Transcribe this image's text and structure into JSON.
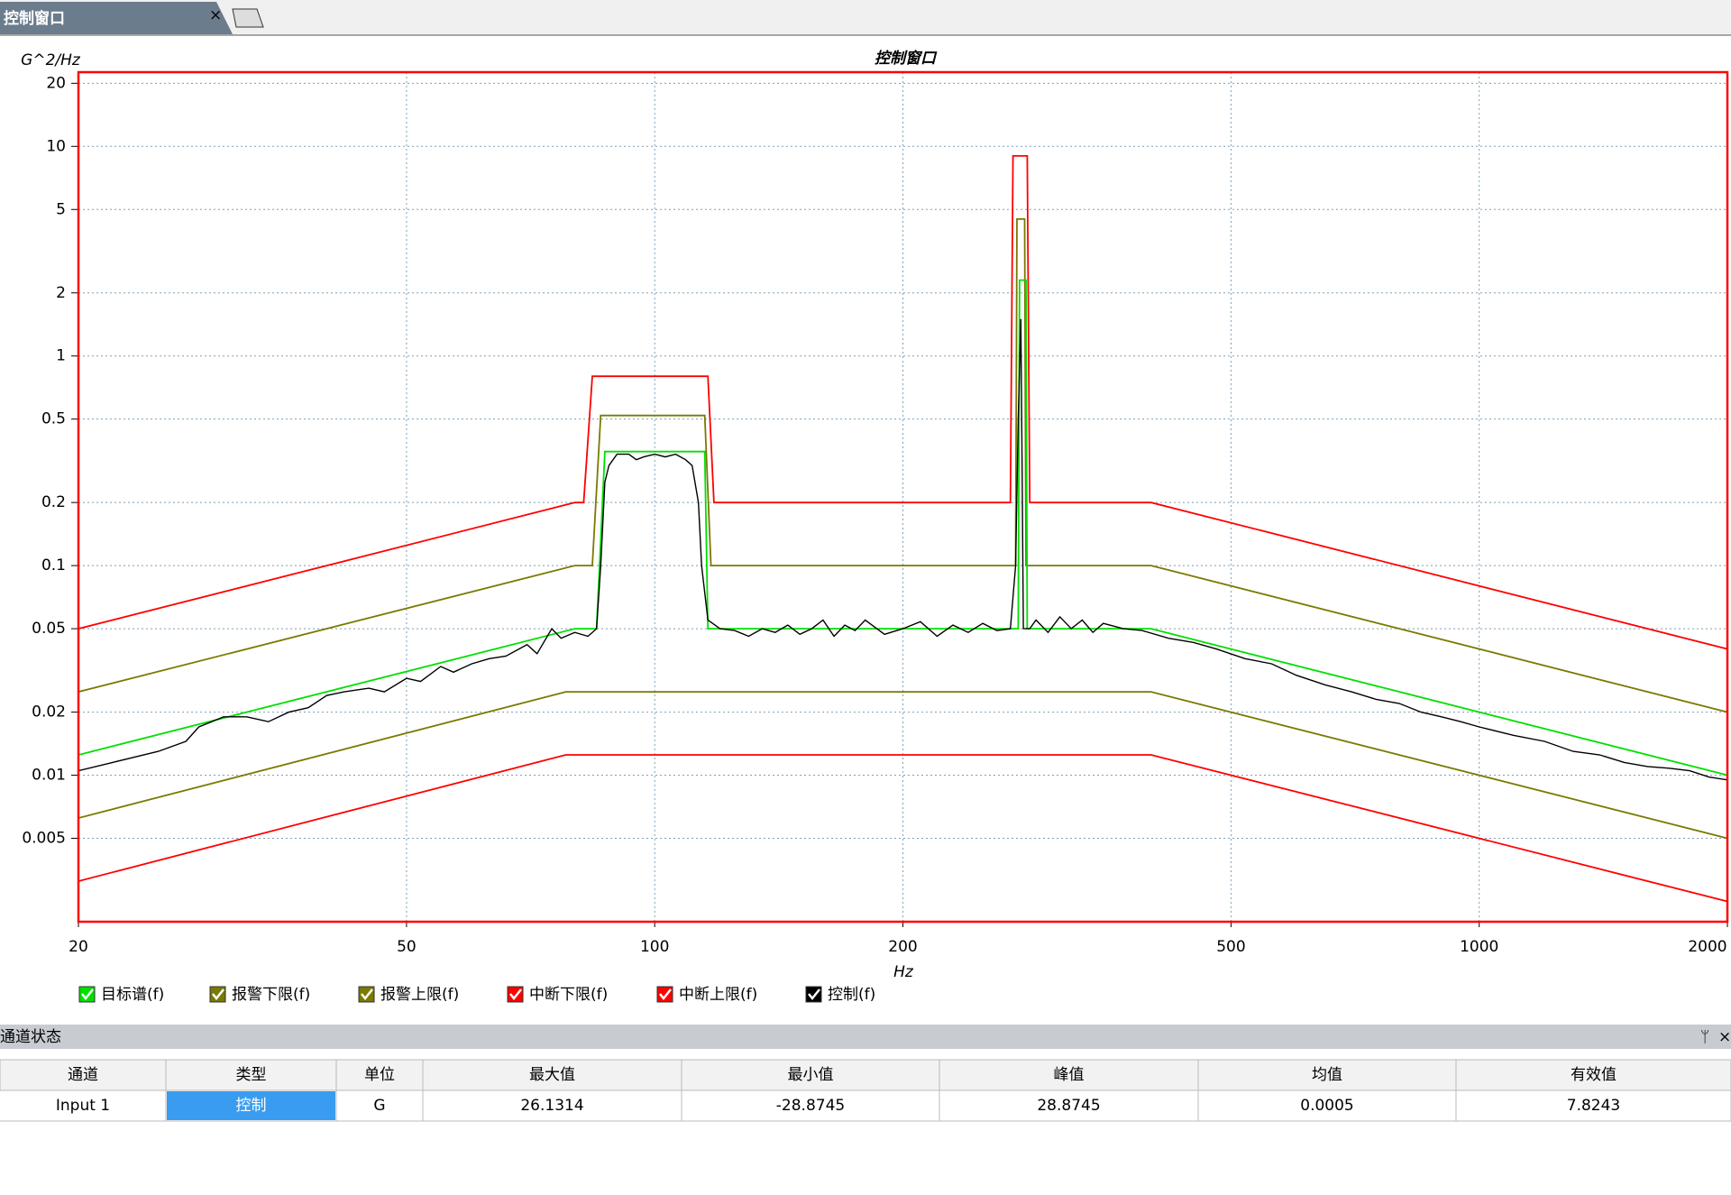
{
  "tab": {
    "title": "控制窗口"
  },
  "chart_data": {
    "type": "line",
    "title": "控制窗口",
    "y_label": "G^2/Hz",
    "x_label": "Hz",
    "xscale": "log",
    "yscale": "log",
    "grid": true,
    "xlim": [
      20,
      2000
    ],
    "ylim": [
      0.002,
      22.6
    ],
    "xticks": [
      20,
      50,
      100,
      200,
      500,
      1000,
      2000
    ],
    "yticks": [
      20,
      10,
      5,
      2,
      1,
      0.5,
      0.2,
      0.1,
      0.05,
      0.02,
      0.01,
      0.005
    ],
    "series": [
      {
        "name": "目标谱(f)",
        "color": "#00e000",
        "x": [
          20,
          80,
          85,
          87,
          115,
          116,
          276,
          277,
          282,
          283,
          400,
          2000
        ],
        "values": [
          0.0125,
          0.05,
          0.05,
          0.35,
          0.35,
          0.05,
          0.05,
          2.3,
          2.3,
          0.05,
          0.05,
          0.01
        ]
      },
      {
        "name": "报警下限(f)",
        "color": "#7a7a00",
        "x": [
          20,
          78,
          400,
          2000
        ],
        "values": [
          0.00625,
          0.025,
          0.025,
          0.005
        ]
      },
      {
        "name": "报警上限(f)",
        "color": "#7a7a00",
        "x": [
          20,
          80,
          84,
          86,
          115,
          117,
          274,
          275,
          281,
          282,
          400,
          2000
        ],
        "values": [
          0.025,
          0.1,
          0.1,
          0.52,
          0.52,
          0.1,
          0.1,
          4.5,
          4.5,
          0.1,
          0.1,
          0.02
        ]
      },
      {
        "name": "中断下限(f)",
        "color": "#ff0000",
        "x": [
          20,
          78,
          400,
          2000
        ],
        "values": [
          0.003125,
          0.0125,
          0.0125,
          0.0025
        ]
      },
      {
        "name": "中断上限(f)",
        "color": "#ff0000",
        "x": [
          20,
          80,
          82,
          84,
          116,
          118,
          270,
          272,
          283,
          285,
          400,
          2000
        ],
        "values": [
          0.05,
          0.2,
          0.2,
          0.8,
          0.8,
          0.2,
          0.2,
          9,
          9,
          0.2,
          0.2,
          0.04
        ]
      },
      {
        "name": "控制(f)",
        "color": "#000000",
        "x": [
          20,
          22,
          25,
          27,
          28,
          30,
          32,
          34,
          36,
          38,
          40,
          42,
          45,
          47,
          50,
          52,
          55,
          57,
          60,
          63,
          66,
          70,
          72,
          75,
          77,
          80,
          83,
          85,
          86,
          87,
          88,
          90,
          93,
          95,
          97,
          100,
          103,
          106,
          109,
          111,
          113,
          114,
          116,
          120,
          125,
          130,
          135,
          140,
          145,
          150,
          155,
          160,
          165,
          170,
          175,
          180,
          190,
          200,
          210,
          220,
          230,
          240,
          250,
          260,
          270,
          274,
          276,
          278,
          279,
          280,
          285,
          290,
          300,
          310,
          320,
          330,
          340,
          350,
          370,
          390,
          420,
          450,
          480,
          520,
          560,
          600,
          650,
          700,
          750,
          800,
          850,
          900,
          950,
          1000,
          1100,
          1200,
          1300,
          1400,
          1500,
          1600,
          1700,
          1800,
          1900,
          2000
        ],
        "values": [
          0.0105,
          0.0115,
          0.013,
          0.0145,
          0.017,
          0.019,
          0.019,
          0.018,
          0.02,
          0.021,
          0.024,
          0.025,
          0.026,
          0.025,
          0.029,
          0.028,
          0.033,
          0.031,
          0.034,
          0.036,
          0.037,
          0.042,
          0.038,
          0.05,
          0.045,
          0.048,
          0.046,
          0.05,
          0.1,
          0.25,
          0.3,
          0.34,
          0.34,
          0.32,
          0.33,
          0.34,
          0.33,
          0.34,
          0.32,
          0.3,
          0.2,
          0.1,
          0.055,
          0.05,
          0.049,
          0.046,
          0.05,
          0.048,
          0.052,
          0.047,
          0.05,
          0.055,
          0.046,
          0.052,
          0.049,
          0.055,
          0.047,
          0.05,
          0.054,
          0.046,
          0.052,
          0.048,
          0.053,
          0.049,
          0.05,
          0.1,
          0.5,
          1.5,
          0.3,
          0.05,
          0.05,
          0.055,
          0.048,
          0.057,
          0.05,
          0.055,
          0.048,
          0.053,
          0.05,
          0.049,
          0.045,
          0.043,
          0.04,
          0.036,
          0.034,
          0.03,
          0.027,
          0.025,
          0.023,
          0.022,
          0.02,
          0.019,
          0.018,
          0.017,
          0.0155,
          0.0145,
          0.013,
          0.0125,
          0.0115,
          0.011,
          0.0108,
          0.0105,
          0.0098,
          0.0095
        ]
      }
    ]
  },
  "panel": {
    "title": "通道状态"
  },
  "table": {
    "header": [
      "通道",
      "类型",
      "单位",
      "最大值",
      "最小值",
      "峰值",
      "均值",
      "有效值"
    ],
    "rows": [
      [
        "Input 1",
        "控制",
        "G",
        "26.1314",
        "-28.8745",
        "28.8745",
        "0.0005",
        "7.8243"
      ]
    ]
  }
}
